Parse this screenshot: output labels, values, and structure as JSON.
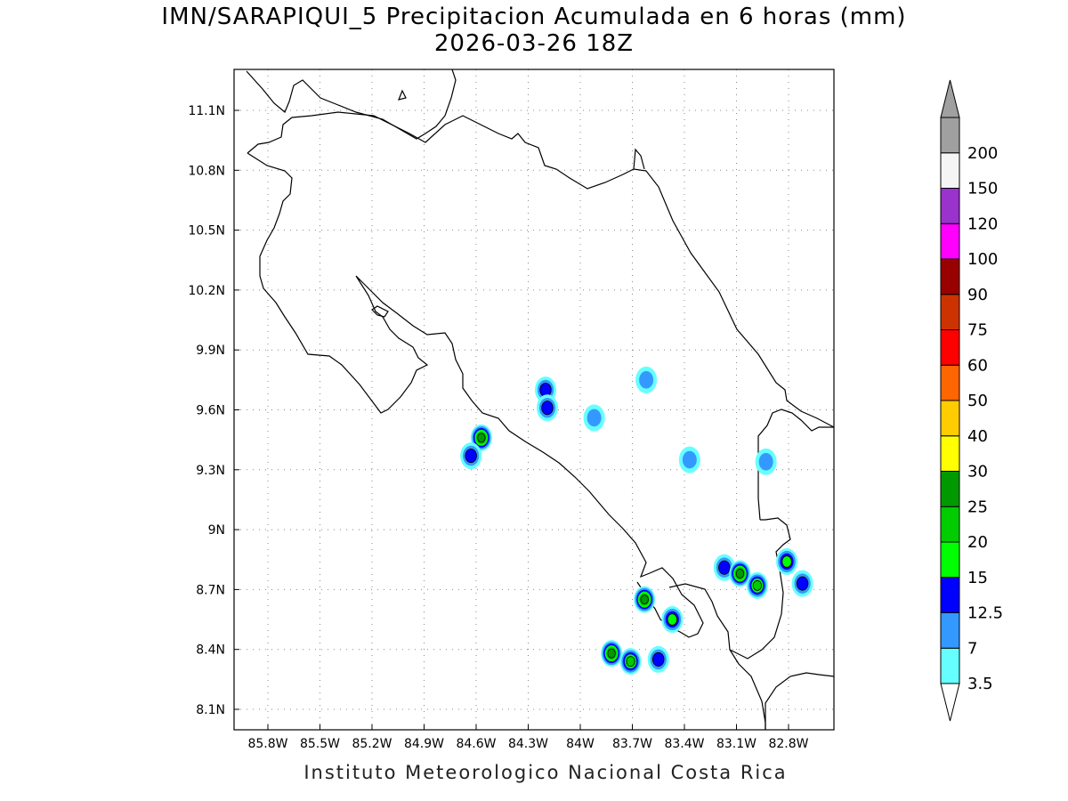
{
  "title_line1": "IMN/SARAPIQUI_5 Precipitacion Acumulada en 6 horas (mm)",
  "title_line2": "2026-03-26 18Z",
  "credit": "Instituto Meteorologico Nacional Costa Rica",
  "map": {
    "lon_range": [
      -86.0,
      -83.0
    ],
    "lat_range": [
      8.0,
      11.3
    ],
    "lon_ticks": [
      "85.8W",
      "85.5W",
      "85.2W",
      "84.9W",
      "84.6W",
      "84.3W",
      "84W",
      "83.7W",
      "83.4W",
      "83.1W",
      "82.8W"
    ],
    "lat_ticks": [
      "11.1N",
      "10.8N",
      "10.5N",
      "10.2N",
      "9.9N",
      "9.6N",
      "9.3N",
      "9N",
      "8.7N",
      "8.4N",
      "8.1N"
    ],
    "grid": "dotted"
  },
  "colorbar": {
    "levels": [
      "3.5",
      "7",
      "12.5",
      "15",
      "20",
      "25",
      "30",
      "40",
      "50",
      "60",
      "75",
      "90",
      "100",
      "120",
      "150",
      "200"
    ],
    "colors": [
      "#66ffff",
      "#3399ff",
      "#0000ff",
      "#00ff00",
      "#00cc00",
      "#009900",
      "#ffff00",
      "#ffcc00",
      "#ff6600",
      "#ff0000",
      "#cc3300",
      "#990000",
      "#ff00ff",
      "#9933cc",
      "#f5f5f5",
      "#a0a0a0"
    ],
    "extend_low_color": "#ffffff",
    "extend_high_color": "#a0a0a0"
  },
  "rain_cells": [
    {
      "lon": -84.57,
      "lat": 9.46,
      "max_mm": 25
    },
    {
      "lon": -84.63,
      "lat": 9.37,
      "max_mm": 12.5
    },
    {
      "lon": -84.2,
      "lat": 9.7,
      "max_mm": 12.5
    },
    {
      "lon": -84.19,
      "lat": 9.61,
      "max_mm": 12.5
    },
    {
      "lon": -83.92,
      "lat": 9.56,
      "max_mm": 7
    },
    {
      "lon": -83.63,
      "lat": 8.65,
      "max_mm": 25
    },
    {
      "lon": -83.47,
      "lat": 8.55,
      "max_mm": 15
    },
    {
      "lon": -83.82,
      "lat": 8.38,
      "max_mm": 25
    },
    {
      "lon": -83.71,
      "lat": 8.34,
      "max_mm": 20
    },
    {
      "lon": -83.55,
      "lat": 8.35,
      "max_mm": 12.5
    },
    {
      "lon": -83.17,
      "lat": 8.81,
      "max_mm": 12.5
    },
    {
      "lon": -83.08,
      "lat": 8.78,
      "max_mm": 25
    },
    {
      "lon": -82.98,
      "lat": 8.72,
      "max_mm": 20
    },
    {
      "lon": -82.81,
      "lat": 8.84,
      "max_mm": 15
    },
    {
      "lon": -82.72,
      "lat": 8.73,
      "max_mm": 12.5
    },
    {
      "lon": -82.93,
      "lat": 9.34,
      "max_mm": 7
    },
    {
      "lon": -83.37,
      "lat": 9.35,
      "max_mm": 7
    },
    {
      "lon": -83.62,
      "lat": 9.75,
      "max_mm": 7
    }
  ]
}
